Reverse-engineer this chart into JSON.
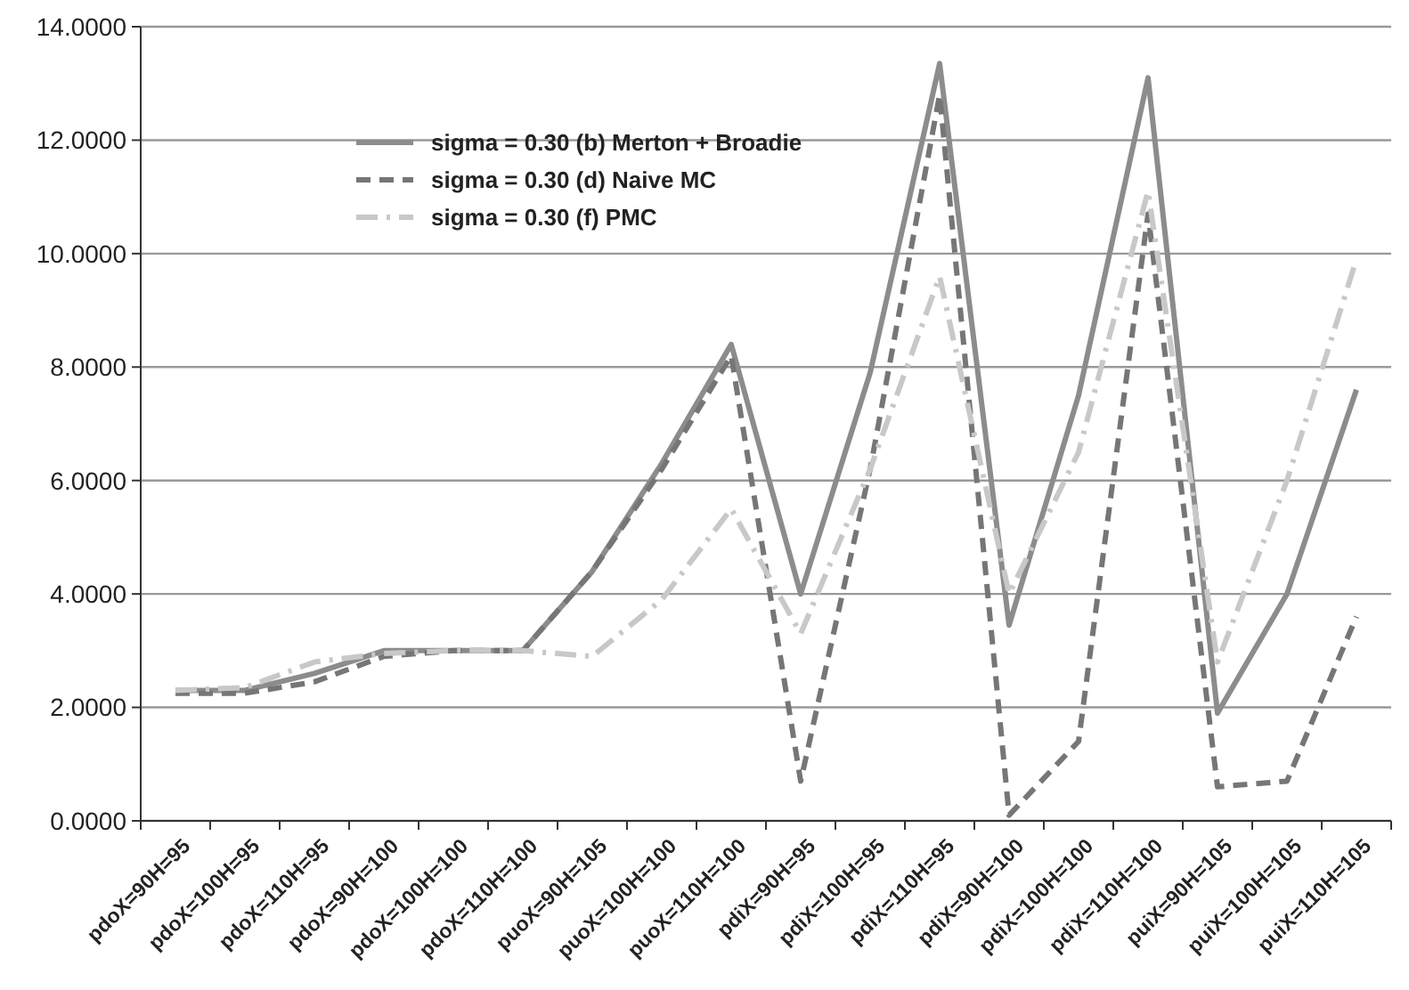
{
  "chart_data": {
    "type": "line",
    "categories": [
      "pdoX=90H=95",
      "pdoX=100H=95",
      "pdoX=110H=95",
      "pdoX=90H=100",
      "pdoX=100H=100",
      "pdoX=110H=100",
      "puoX=90H=105",
      "puoX=100H=100",
      "puoX=110H=100",
      "pdiX=90H=95",
      "pdiX=100H=95",
      "pdiX=110H=95",
      "pdiX=90H=100",
      "pdiX=100H=100",
      "pdiX=110H=100",
      "puiX=90H=105",
      "puiX=100H=105",
      "puiX=110H=105"
    ],
    "series": [
      {
        "name": "sigma = 0.30 (b) Merton + Broadie",
        "color": "#8c8c8c",
        "line_style": "solid",
        "values": [
          2.3,
          2.3,
          2.6,
          3.0,
          3.0,
          3.0,
          4.4,
          6.3,
          8.4,
          4.0,
          7.9,
          13.35,
          3.45,
          7.5,
          13.1,
          1.9,
          4.0,
          7.6
        ]
      },
      {
        "name": "sigma = 0.30 (d) Naive MC",
        "color": "#767676",
        "line_style": "dashed",
        "values": [
          2.25,
          2.25,
          2.45,
          2.9,
          3.0,
          3.0,
          4.4,
          6.2,
          8.2,
          0.7,
          6.2,
          12.8,
          0.1,
          1.4,
          10.7,
          0.6,
          0.7,
          3.6
        ]
      },
      {
        "name": "sigma = 0.30 (f) PMC",
        "color": "#c8c8c8",
        "line_style": "dotted",
        "values": [
          2.3,
          2.35,
          2.8,
          2.95,
          3.0,
          3.0,
          2.9,
          3.9,
          5.5,
          3.3,
          6.2,
          9.6,
          4.0,
          6.5,
          11.1,
          2.8,
          6.0,
          9.9
        ]
      }
    ],
    "ylim": [
      0,
      14
    ],
    "yticks": [
      {
        "value": 0,
        "label": "0.0000"
      },
      {
        "value": 2,
        "label": "2.0000"
      },
      {
        "value": 4,
        "label": "4.0000"
      },
      {
        "value": 6,
        "label": "6.0000"
      },
      {
        "value": 8,
        "label": "8.0000"
      },
      {
        "value": 10,
        "label": "10.0000"
      },
      {
        "value": 12,
        "label": "12.0000"
      },
      {
        "value": 14,
        "label": "14.0000"
      }
    ],
    "grid": "y",
    "legend": "top",
    "marker": "none"
  }
}
